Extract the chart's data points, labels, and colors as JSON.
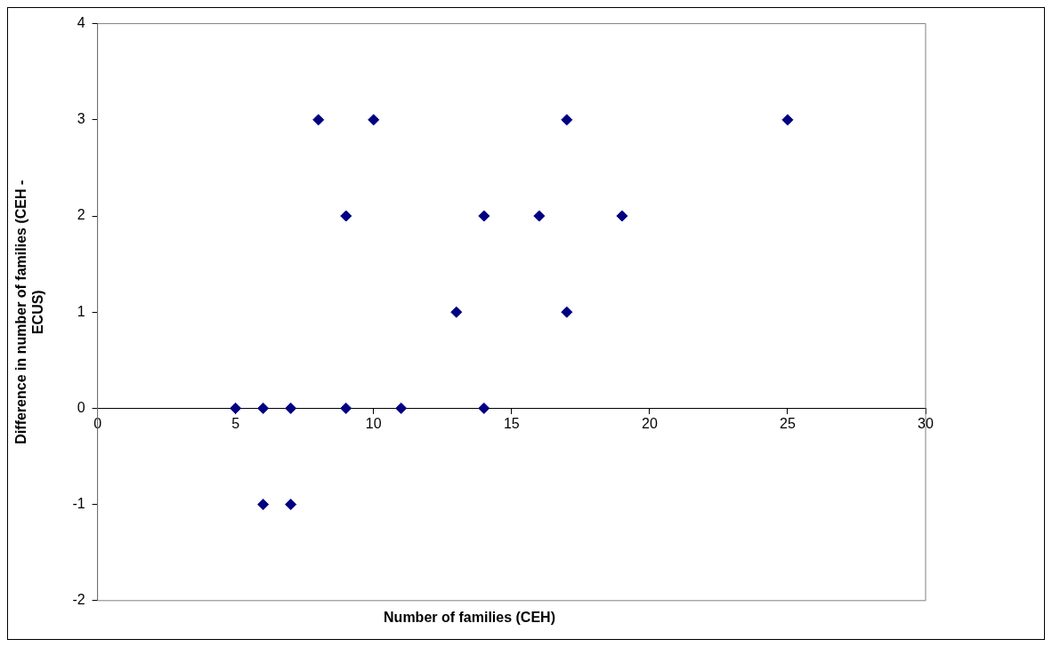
{
  "chart_data": {
    "type": "scatter",
    "xlabel": "Number of families (CEH)",
    "ylabel": "Difference in number of families (CEH - ECUS)",
    "series": [
      {
        "color": "#000080",
        "x": [
          5,
          6,
          7,
          9,
          11,
          14,
          6,
          7,
          8,
          10,
          17,
          25,
          9,
          14,
          16,
          19,
          13,
          17
        ],
        "values": [
          0,
          0,
          0,
          0,
          0,
          0,
          -1,
          -1,
          3,
          3,
          3,
          3,
          2,
          2,
          2,
          2,
          1,
          1
        ]
      }
    ],
    "xlim": [
      0,
      30
    ],
    "xticks": [
      0,
      5,
      10,
      15,
      20,
      25,
      30
    ],
    "ylim": [
      -2,
      4
    ],
    "yticks": [
      -2,
      -1,
      0,
      1,
      2,
      3,
      4
    ],
    "grid": false,
    "legend": false,
    "marker": "diamond"
  }
}
